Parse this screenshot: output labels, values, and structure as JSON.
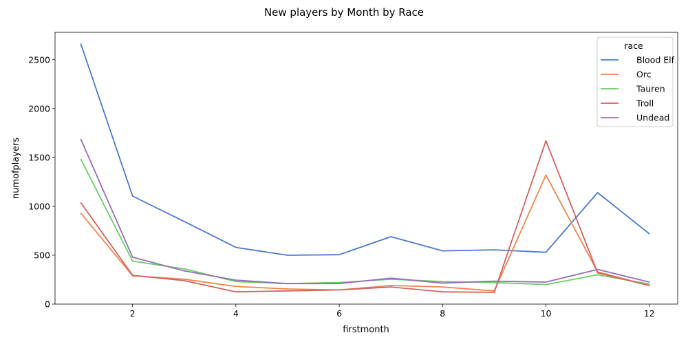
{
  "chart_data": {
    "type": "line",
    "title": "New players by Month by Race",
    "xlabel": "firstmonth",
    "ylabel": "numofplayers",
    "xlim": [
      0.5,
      12.55
    ],
    "ylim": [
      0,
      2780
    ],
    "xticks": [
      2,
      4,
      6,
      8,
      10,
      12
    ],
    "yticks": [
      0,
      500,
      1000,
      1500,
      2000,
      2500
    ],
    "grid": false,
    "legend": {
      "title": "race",
      "placement": "top-right"
    },
    "x": [
      1,
      2,
      3,
      4,
      5,
      6,
      7,
      8,
      9,
      10,
      11,
      12
    ],
    "series": [
      {
        "name": "Blood Elf",
        "color": "#4878d0",
        "values": [
          2660,
          1105,
          845,
          580,
          500,
          505,
          690,
          545,
          555,
          530,
          1140,
          720
        ]
      },
      {
        "name": "Orc",
        "color": "#ee854a",
        "values": [
          930,
          290,
          255,
          180,
          155,
          145,
          190,
          175,
          135,
          1320,
          330,
          190
        ]
      },
      {
        "name": "Tauren",
        "color": "#6acc64",
        "values": [
          1480,
          440,
          360,
          230,
          210,
          220,
          255,
          230,
          220,
          200,
          300,
          205
        ]
      },
      {
        "name": "Troll",
        "color": "#d65f5f",
        "values": [
          1035,
          295,
          240,
          125,
          135,
          145,
          175,
          125,
          120,
          1670,
          320,
          190
        ]
      },
      {
        "name": "Undead",
        "color": "#956cb4",
        "values": [
          1685,
          480,
          340,
          245,
          210,
          210,
          265,
          215,
          235,
          225,
          355,
          225
        ]
      }
    ]
  }
}
